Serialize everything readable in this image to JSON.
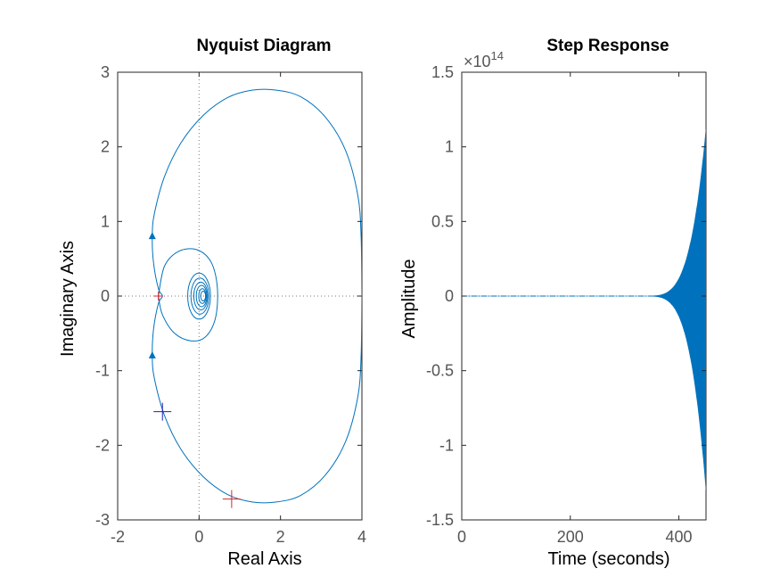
{
  "chart_data": [
    {
      "type": "line",
      "title": "Nyquist Diagram",
      "xlabel": "Real Axis",
      "ylabel": "Imaginary Axis",
      "xlim": [
        -2,
        4
      ],
      "ylim": [
        -3,
        3
      ],
      "xticks": [
        "-2",
        "0",
        "2",
        "4"
      ],
      "yticks": [
        "-3",
        "-2",
        "-1",
        "0",
        "1",
        "2",
        "3"
      ],
      "grid": false,
      "reference_lines": {
        "x": 0,
        "y": 0,
        "style": "dotted"
      },
      "series": [
        {
          "color": "#0072BD",
          "description_points": "closed curve through (4,0), peak (1.3,2.75), (-1.15,0.8), (-1,0), (-1.15,-0.8), (0.8,-2.72), min (1.3,-2.75)"
        }
      ],
      "arrows": [
        {
          "x": -1.15,
          "y": 0.8
        },
        {
          "x": -1.15,
          "y": -0.8
        }
      ],
      "markers": [
        {
          "x": -1,
          "y": 0,
          "color": "#D62728",
          "symbol": "+"
        },
        {
          "x": -0.9,
          "y": -1.55,
          "color": "#1F1FB4",
          "symbol": "+"
        },
        {
          "x": 0.8,
          "y": -2.72,
          "color": "#D62728",
          "symbol": "+"
        }
      ],
      "colors": {
        "curve": "#0072BD",
        "critical": "#D62728",
        "margin": "#1F1FB4"
      }
    },
    {
      "type": "line",
      "title": "Step Response",
      "xlabel": "Time (seconds)",
      "ylabel": "Amplitude",
      "xlim": [
        0,
        450
      ],
      "ylim": [
        -1.5,
        1.5
      ],
      "y_multiplier": "×10",
      "y_exponent": "14",
      "xticks": [
        "0",
        "200",
        "400"
      ],
      "yticks": [
        "-1.5",
        "-1",
        "-0.5",
        "0",
        "0.5",
        "1",
        "1.5"
      ],
      "grid": false,
      "series": [
        {
          "color": "#0072BD",
          "envelope": "oscillation ≈0 until t≈360, grows to +1.12 and -1.3 at t=450"
        }
      ],
      "colors": {
        "curve": "#0072BD"
      }
    }
  ]
}
